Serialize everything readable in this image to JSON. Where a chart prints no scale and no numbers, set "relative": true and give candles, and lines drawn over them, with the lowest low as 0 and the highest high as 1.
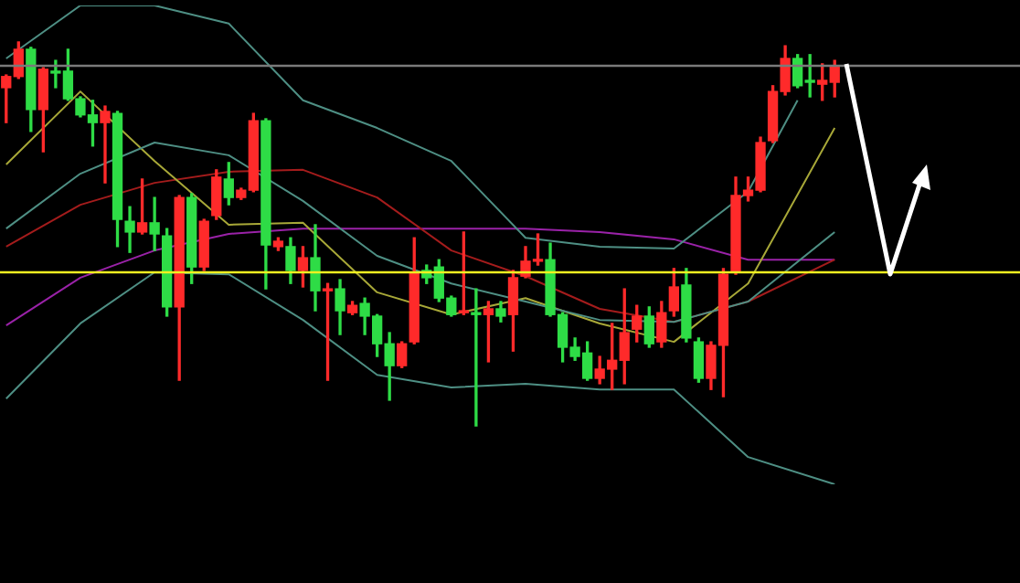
{
  "chart_data": {
    "type": "candlestick",
    "relative": true,
    "categories": [
      null,
      null,
      null,
      null,
      null,
      null,
      null,
      null,
      null,
      null,
      null,
      null,
      null,
      null,
      null,
      null,
      null,
      null,
      null,
      null,
      null,
      null,
      null,
      null,
      null,
      null,
      null,
      null,
      null,
      null,
      null,
      null,
      null,
      null,
      null,
      null,
      null,
      null,
      null,
      null,
      null,
      null,
      null,
      null,
      null,
      null,
      null,
      null,
      null,
      null,
      null,
      null,
      null,
      null,
      null,
      null,
      null,
      null,
      null,
      null,
      null,
      null,
      null,
      null,
      null,
      null,
      null,
      null
    ],
    "ohlc": [
      [
        0.881,
        0.914,
        0.79,
        0.91
      ],
      [
        0.91,
        1.0,
        0.905,
        0.981
      ],
      [
        0.981,
        0.986,
        0.767,
        0.824
      ],
      [
        0.824,
        0.933,
        0.714,
        0.929
      ],
      [
        0.924,
        0.952,
        0.881,
        0.919
      ],
      [
        0.924,
        0.981,
        0.848,
        0.852
      ],
      [
        0.852,
        0.857,
        0.805,
        0.81
      ],
      [
        0.81,
        0.848,
        0.729,
        0.79
      ],
      [
        0.79,
        0.833,
        0.633,
        0.819
      ],
      [
        0.814,
        0.819,
        0.467,
        0.538
      ],
      [
        0.533,
        0.571,
        0.452,
        0.505
      ],
      [
        0.505,
        0.643,
        0.5,
        0.529
      ],
      [
        0.529,
        0.595,
        0.457,
        0.5
      ],
      [
        0.495,
        0.514,
        0.286,
        0.31
      ],
      [
        0.31,
        0.6,
        0.119,
        0.595
      ],
      [
        0.595,
        0.605,
        0.371,
        0.414
      ],
      [
        0.414,
        0.538,
        0.405,
        0.533
      ],
      [
        0.548,
        0.667,
        0.538,
        0.648
      ],
      [
        0.643,
        0.686,
        0.576,
        0.595
      ],
      [
        0.595,
        0.619,
        0.59,
        0.614
      ],
      [
        0.614,
        0.814,
        0.61,
        0.795
      ],
      [
        0.795,
        0.8,
        0.357,
        0.471
      ],
      [
        0.467,
        0.49,
        0.457,
        0.481
      ],
      [
        0.467,
        0.49,
        0.371,
        0.405
      ],
      [
        0.405,
        0.467,
        0.362,
        0.438
      ],
      [
        0.438,
        0.524,
        0.3,
        0.352
      ],
      [
        0.352,
        0.371,
        0.119,
        0.357
      ],
      [
        0.357,
        0.381,
        0.238,
        0.3
      ],
      [
        0.295,
        0.324,
        0.29,
        0.314
      ],
      [
        0.319,
        0.333,
        0.238,
        0.286
      ],
      [
        0.286,
        0.29,
        0.181,
        0.214
      ],
      [
        0.214,
        0.243,
        0.067,
        0.157
      ],
      [
        0.157,
        0.219,
        0.152,
        0.214
      ],
      [
        0.219,
        0.49,
        0.214,
        0.4
      ],
      [
        0.405,
        0.419,
        0.371,
        0.386
      ],
      [
        0.414,
        0.433,
        0.324,
        0.333
      ],
      [
        0.333,
        0.338,
        0.286,
        0.29
      ],
      [
        0.295,
        0.505,
        0.29,
        0.3
      ],
      [
        0.295,
        0.357,
        0.0,
        0.29
      ],
      [
        0.29,
        0.324,
        0.167,
        0.305
      ],
      [
        0.305,
        0.324,
        0.271,
        0.286
      ],
      [
        0.29,
        0.405,
        0.195,
        0.386
      ],
      [
        0.39,
        0.467,
        0.386,
        0.429
      ],
      [
        0.429,
        0.5,
        0.419,
        0.433
      ],
      [
        0.433,
        0.476,
        0.286,
        0.29
      ],
      [
        0.29,
        0.295,
        0.167,
        0.205
      ],
      [
        0.205,
        0.229,
        0.171,
        0.181
      ],
      [
        0.19,
        0.219,
        0.119,
        0.124
      ],
      [
        0.124,
        0.181,
        0.11,
        0.148
      ],
      [
        0.148,
        0.267,
        0.095,
        0.171
      ],
      [
        0.171,
        0.357,
        0.11,
        0.243
      ],
      [
        0.252,
        0.314,
        0.219,
        0.286
      ],
      [
        0.286,
        0.31,
        0.205,
        0.214
      ],
      [
        0.219,
        0.324,
        0.205,
        0.295
      ],
      [
        0.3,
        0.41,
        0.286,
        0.362
      ],
      [
        0.367,
        0.41,
        0.219,
        0.229
      ],
      [
        0.219,
        0.229,
        0.114,
        0.124
      ],
      [
        0.124,
        0.219,
        0.095,
        0.21
      ],
      [
        0.21,
        0.41,
        0.076,
        0.395
      ],
      [
        0.4,
        0.648,
        0.395,
        0.6
      ],
      [
        0.6,
        0.648,
        0.586,
        0.614
      ],
      [
        0.614,
        0.752,
        0.61,
        0.738
      ],
      [
        0.743,
        0.886,
        0.738,
        0.871
      ],
      [
        0.871,
        0.99,
        0.862,
        0.957
      ],
      [
        0.957,
        0.967,
        0.881,
        0.886
      ],
      [
        0.9,
        0.967,
        0.857,
        0.895
      ],
      [
        0.89,
        0.943,
        0.848,
        0.9
      ],
      [
        0.895,
        0.952,
        0.857,
        0.938
      ]
    ],
    "colors": [
      "#ff2a2a",
      "#ff2a2a",
      "#2edc46",
      "#ff2a2a",
      "#2edc46",
      "#2edc46",
      "#2edc46",
      "#2edc46",
      "#ff2a2a",
      "#2edc46",
      "#2edc46",
      "#ff2a2a",
      "#2edc46",
      "#2edc46",
      "#ff2a2a",
      "#2edc46",
      "#ff2a2a",
      "#ff2a2a",
      "#2edc46",
      "#ff2a2a",
      "#ff2a2a",
      "#2edc46",
      "#ff2a2a",
      "#2edc46",
      "#ff2a2a",
      "#2edc46",
      "#ff2a2a",
      "#2edc46",
      "#ff2a2a",
      "#2edc46",
      "#2edc46",
      "#2edc46",
      "#ff2a2a",
      "#ff2a2a",
      "#2edc46",
      "#2edc46",
      "#2edc46",
      "#ff2a2a",
      "#2edc46",
      "#ff2a2a",
      "#2edc46",
      "#ff2a2a",
      "#ff2a2a",
      "#ff2a2a",
      "#2edc46",
      "#2edc46",
      "#2edc46",
      "#2edc46",
      "#ff2a2a",
      "#ff2a2a",
      "#ff2a2a",
      "#ff2a2a",
      "#2edc46",
      "#ff2a2a",
      "#ff2a2a",
      "#2edc46",
      "#2edc46",
      "#ff2a2a",
      "#ff2a2a",
      "#ff2a2a",
      "#ff2a2a",
      "#ff2a2a",
      "#ff2a2a",
      "#ff2a2a",
      "#2edc46",
      "#2edc46",
      "#ff2a2a",
      "#ff2a2a"
    ],
    "series": [
      {
        "type": "line",
        "color": "#4e8f84",
        "values": [
          0.957,
          null,
          null,
          null,
          null,
          null,
          1.095,
          null,
          null,
          null,
          null,
          null,
          1.095,
          null,
          null,
          null,
          null,
          null,
          1.048,
          null,
          null,
          null,
          null,
          null,
          0.848,
          null,
          null,
          null,
          null,
          null,
          0.776,
          null,
          null,
          null,
          null,
          null,
          0.69,
          null,
          null,
          null,
          null,
          null,
          0.49,
          null,
          null,
          null,
          null,
          null,
          0.467,
          null,
          null,
          null,
          null,
          null,
          0.462,
          null,
          null,
          null,
          null,
          null,
          0.61,
          null,
          null,
          null,
          0.848,
          null,
          null,
          null
        ]
      },
      {
        "type": "line",
        "color": "#4e8f84",
        "values": [
          0.514,
          null,
          null,
          null,
          null,
          null,
          0.657,
          null,
          null,
          null,
          null,
          null,
          0.738,
          null,
          null,
          null,
          null,
          null,
          0.705,
          null,
          null,
          null,
          null,
          null,
          0.586,
          null,
          null,
          null,
          null,
          null,
          0.443,
          null,
          null,
          null,
          null,
          null,
          0.371,
          null,
          null,
          null,
          null,
          null,
          0.324,
          null,
          null,
          null,
          null,
          null,
          0.276,
          null,
          null,
          null,
          null,
          null,
          0.271,
          null,
          null,
          null,
          null,
          null,
          0.324,
          null,
          null,
          null,
          null,
          null,
          null,
          0.505
        ]
      },
      {
        "type": "line",
        "color": "#4e8f84",
        "values": [
          0.071,
          null,
          null,
          null,
          null,
          null,
          0.267,
          null,
          null,
          null,
          null,
          null,
          0.4,
          null,
          null,
          null,
          null,
          null,
          0.395,
          null,
          null,
          null,
          null,
          null,
          0.276,
          null,
          null,
          null,
          null,
          null,
          0.133,
          null,
          null,
          null,
          null,
          null,
          0.1,
          null,
          null,
          null,
          null,
          null,
          0.11,
          null,
          null,
          null,
          null,
          null,
          0.095,
          null,
          null,
          null,
          null,
          null,
          0.095,
          null,
          null,
          null,
          null,
          null,
          -0.081,
          null,
          null,
          null,
          null,
          null,
          null,
          -0.152
        ]
      },
      {
        "type": "line",
        "color": "#a8a838",
        "values": [
          0.681,
          null,
          null,
          null,
          null,
          null,
          0.871,
          null,
          null,
          null,
          null,
          null,
          0.69,
          null,
          null,
          null,
          null,
          null,
          0.524,
          null,
          null,
          null,
          null,
          null,
          0.529,
          null,
          null,
          null,
          null,
          null,
          0.348,
          null,
          null,
          null,
          null,
          null,
          0.29,
          null,
          null,
          null,
          null,
          null,
          0.333,
          null,
          null,
          null,
          null,
          null,
          0.267,
          null,
          null,
          null,
          null,
          null,
          0.219,
          null,
          null,
          null,
          null,
          null,
          0.371,
          null,
          null,
          null,
          null,
          null,
          null,
          0.776
        ]
      },
      {
        "type": "line",
        "color": "#a41c1c",
        "values": [
          0.467,
          null,
          null,
          null,
          null,
          null,
          0.576,
          null,
          null,
          null,
          null,
          null,
          0.633,
          null,
          null,
          null,
          null,
          null,
          0.662,
          null,
          null,
          null,
          null,
          null,
          0.667,
          null,
          null,
          null,
          null,
          null,
          0.595,
          null,
          null,
          null,
          null,
          null,
          0.457,
          null,
          null,
          null,
          null,
          null,
          0.39,
          null,
          null,
          null,
          null,
          null,
          0.305,
          null,
          null,
          null,
          null,
          null,
          0.271,
          null,
          null,
          null,
          null,
          null,
          0.324,
          null,
          null,
          null,
          null,
          null,
          null,
          0.433
        ]
      },
      {
        "type": "line",
        "color": "#9a22a8",
        "values": [
          0.262,
          null,
          null,
          null,
          null,
          null,
          0.386,
          null,
          null,
          null,
          null,
          null,
          0.457,
          null,
          null,
          null,
          null,
          null,
          0.5,
          null,
          null,
          null,
          null,
          null,
          0.514,
          null,
          null,
          null,
          null,
          null,
          0.514,
          null,
          null,
          null,
          null,
          null,
          0.514,
          null,
          null,
          null,
          null,
          null,
          0.514,
          null,
          null,
          null,
          null,
          null,
          0.505,
          null,
          null,
          null,
          null,
          null,
          0.486,
          null,
          null,
          null,
          null,
          null,
          0.433,
          null,
          null,
          null,
          null,
          null,
          null,
          0.433
        ]
      }
    ],
    "ref_lines": [
      {
        "axis": "y",
        "value": 0.938,
        "color": "#7a7a7a"
      },
      {
        "axis": "y",
        "value": 0.4,
        "color": "#f0f020"
      }
    ]
  }
}
